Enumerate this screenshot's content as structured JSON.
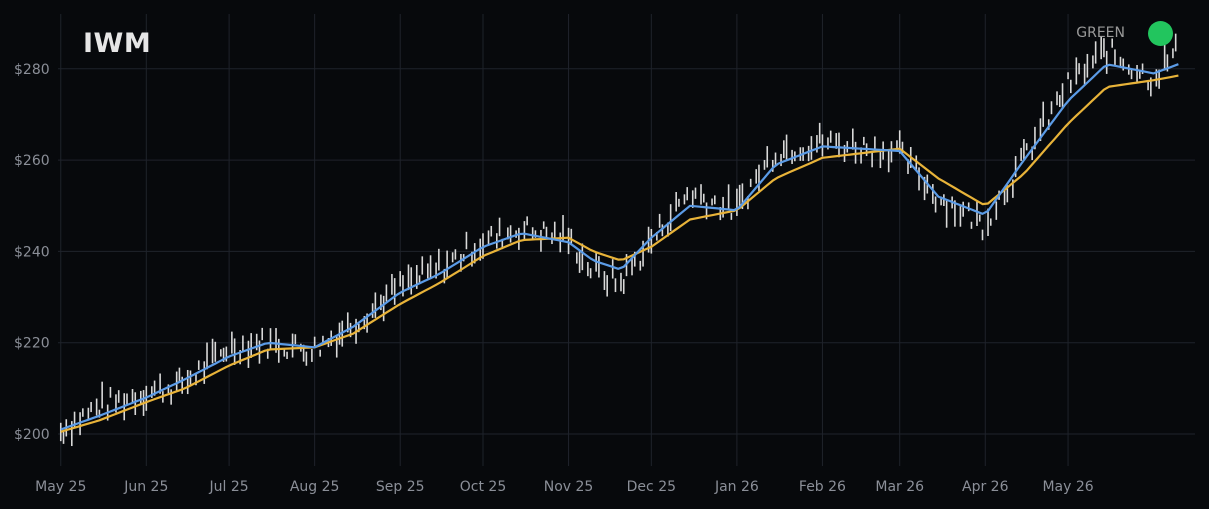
{
  "title": "IWM",
  "badge": {
    "label": "GREEN",
    "color": "#22c55e"
  },
  "chart_data": {
    "type": "candlestick",
    "symbol": "IWM",
    "x_axis": {
      "type": "date",
      "range": [
        "2025-04-30",
        "2026-06-16"
      ],
      "tick_labels": [
        "May 25",
        "Jun 25",
        "Jul 25",
        "Aug 25",
        "Sep 25",
        "Oct 25",
        "Nov 25",
        "Dec 25",
        "Jan 26",
        "Feb 26",
        "Mar 26",
        "Apr 26",
        "May 26"
      ],
      "tick_dates": [
        "2025-05-01",
        "2025-06-01",
        "2025-07-01",
        "2025-08-01",
        "2025-09-01",
        "2025-10-01",
        "2025-11-01",
        "2025-12-01",
        "2026-01-01",
        "2026-02-01",
        "2026-03-01",
        "2026-04-01",
        "2026-05-01"
      ]
    },
    "y_axis": {
      "range": [
        193,
        292
      ],
      "ticks": [
        200,
        220,
        240,
        260,
        280
      ],
      "tick_labels": [
        "$200",
        "$220",
        "$240",
        "$260",
        "$280"
      ]
    },
    "grid": true,
    "colors": {
      "candles": "#d9d9d9",
      "fast_ma": "#5b9be6",
      "slow_ma": "#e8b339",
      "grid": "#1f232b"
    },
    "series": [
      {
        "kind": "price",
        "points": [
          [
            "2025-05-01",
            200.5
          ],
          [
            "2025-05-15",
            206
          ],
          [
            "2025-06-01",
            209
          ],
          [
            "2025-06-15",
            211
          ],
          [
            "2025-07-01",
            219
          ],
          [
            "2025-07-15",
            220
          ],
          [
            "2025-08-01",
            218.5
          ],
          [
            "2025-08-15",
            224
          ],
          [
            "2025-09-01",
            232
          ],
          [
            "2025-09-15",
            236
          ],
          [
            "2025-10-01",
            242
          ],
          [
            "2025-10-15",
            245
          ],
          [
            "2025-11-01",
            243
          ],
          [
            "2025-11-10",
            236
          ],
          [
            "2025-11-20",
            233
          ],
          [
            "2025-12-01",
            242
          ],
          [
            "2025-12-15",
            253
          ],
          [
            "2026-01-01",
            249
          ],
          [
            "2026-01-15",
            262
          ],
          [
            "2026-02-01",
            264
          ],
          [
            "2026-02-15",
            263
          ],
          [
            "2026-03-01",
            262
          ],
          [
            "2026-03-15",
            252
          ],
          [
            "2026-04-01",
            246
          ],
          [
            "2026-04-15",
            260
          ],
          [
            "2026-05-01",
            276
          ],
          [
            "2026-05-15",
            284
          ],
          [
            "2026-06-01",
            278
          ],
          [
            "2026-06-10",
            284
          ]
        ]
      },
      {
        "kind": "moving_average_fast",
        "points": [
          [
            "2025-05-01",
            201
          ],
          [
            "2025-05-15",
            204
          ],
          [
            "2025-06-01",
            208
          ],
          [
            "2025-06-15",
            212
          ],
          [
            "2025-07-01",
            217
          ],
          [
            "2025-07-15",
            220
          ],
          [
            "2025-08-01",
            219
          ],
          [
            "2025-08-15",
            223.5
          ],
          [
            "2025-09-01",
            231
          ],
          [
            "2025-09-15",
            235
          ],
          [
            "2025-10-01",
            241
          ],
          [
            "2025-10-15",
            244
          ],
          [
            "2025-11-01",
            242
          ],
          [
            "2025-11-10",
            238
          ],
          [
            "2025-11-20",
            236
          ],
          [
            "2025-12-01",
            243
          ],
          [
            "2025-12-15",
            250
          ],
          [
            "2026-01-01",
            249
          ],
          [
            "2026-01-15",
            259
          ],
          [
            "2026-02-01",
            263
          ],
          [
            "2026-02-15",
            262.5
          ],
          [
            "2026-03-01",
            262
          ],
          [
            "2026-03-15",
            252
          ],
          [
            "2026-04-01",
            248
          ],
          [
            "2026-04-15",
            260
          ],
          [
            "2026-05-01",
            273
          ],
          [
            "2026-05-15",
            281
          ],
          [
            "2026-06-01",
            279
          ],
          [
            "2026-06-10",
            281
          ]
        ]
      },
      {
        "kind": "moving_average_slow",
        "points": [
          [
            "2025-05-01",
            200.5
          ],
          [
            "2025-05-15",
            203
          ],
          [
            "2025-06-01",
            207
          ],
          [
            "2025-06-15",
            210
          ],
          [
            "2025-07-01",
            215
          ],
          [
            "2025-07-15",
            218.5
          ],
          [
            "2025-08-01",
            219
          ],
          [
            "2025-08-15",
            222
          ],
          [
            "2025-09-01",
            228.5
          ],
          [
            "2025-09-15",
            233
          ],
          [
            "2025-10-01",
            239
          ],
          [
            "2025-10-15",
            242.5
          ],
          [
            "2025-11-01",
            243
          ],
          [
            "2025-11-10",
            240
          ],
          [
            "2025-11-20",
            238
          ],
          [
            "2025-12-01",
            241
          ],
          [
            "2025-12-15",
            247
          ],
          [
            "2026-01-01",
            249
          ],
          [
            "2026-01-15",
            256
          ],
          [
            "2026-02-01",
            260.5
          ],
          [
            "2026-02-15",
            261.5
          ],
          [
            "2026-03-01",
            262.5
          ],
          [
            "2026-03-15",
            256
          ],
          [
            "2026-04-01",
            250
          ],
          [
            "2026-04-15",
            257
          ],
          [
            "2026-05-01",
            268
          ],
          [
            "2026-05-15",
            276
          ],
          [
            "2026-06-01",
            277.5
          ],
          [
            "2026-06-10",
            278.5
          ]
        ]
      }
    ]
  }
}
